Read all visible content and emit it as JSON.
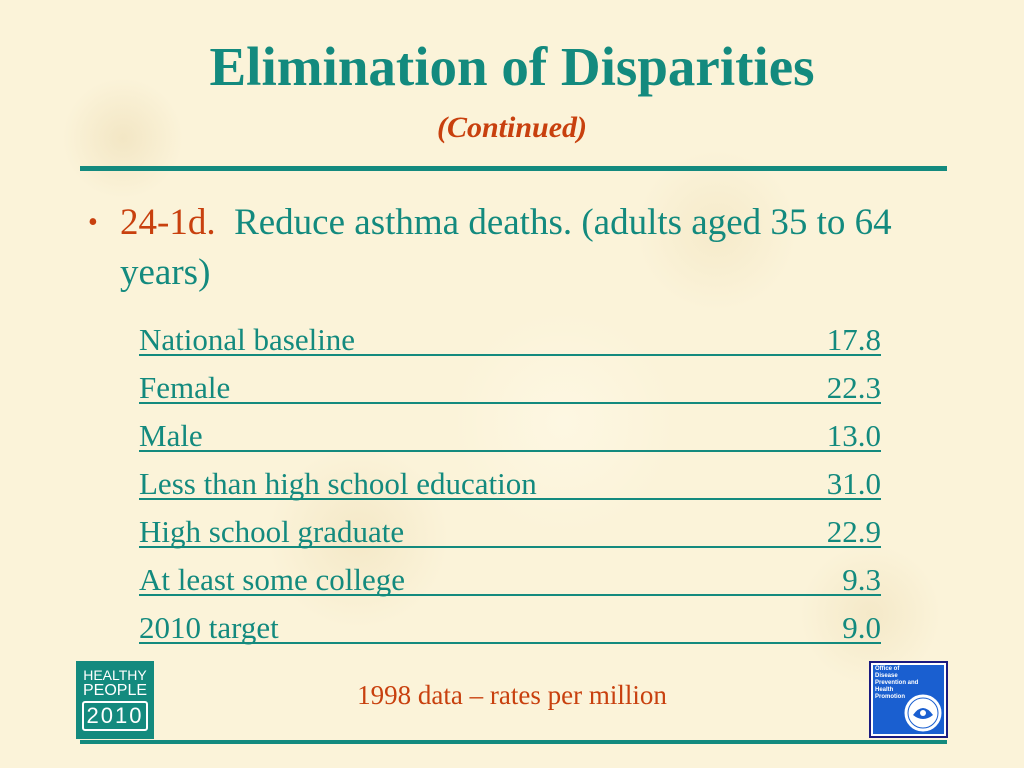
{
  "slide": {
    "title": "Elimination of Disparities",
    "subtitle": "(Continued)"
  },
  "objective": {
    "code": "24-1d.",
    "text": "Reduce asthma deaths. (adults aged 35 to 64 years)"
  },
  "table": {
    "rows": [
      {
        "label": "National baseline",
        "value": "17.8"
      },
      {
        "label": "Female",
        "value": "22.3"
      },
      {
        "label": "Male",
        "value": "13.0"
      },
      {
        "label": "Less than high school education",
        "value": "31.0"
      },
      {
        "label": "High school graduate",
        "value": "22.9"
      },
      {
        "label": "At least some college",
        "value": "9.3"
      },
      {
        "label": "2010 target",
        "value": "9.0"
      }
    ]
  },
  "footer": {
    "note": "1998 data – rates per million"
  },
  "logos": {
    "left": {
      "line1": "HEALTHY",
      "line2": "PEOPLE",
      "year": "2010"
    },
    "right": {
      "line1": "Office of",
      "line2": "Disease",
      "line3": "Prevention and",
      "line4": "Health",
      "line5": "Promotion"
    }
  },
  "colors": {
    "heading": "#138a7e",
    "accent": "#c8400e",
    "background": "#fbf3d9"
  }
}
